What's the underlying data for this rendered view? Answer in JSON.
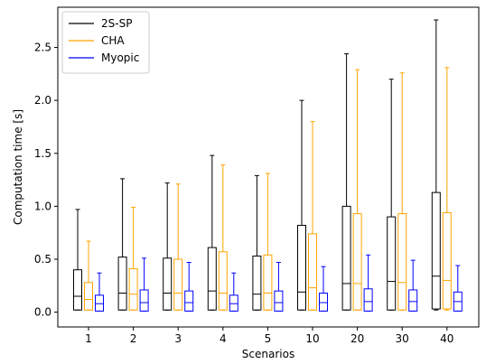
{
  "chart_data": {
    "type": "box",
    "xlabel": "Scenarios",
    "ylabel": "Computation time [s]",
    "categories": [
      "1",
      "2",
      "3",
      "4",
      "5",
      "10",
      "20",
      "30",
      "40"
    ],
    "ylim": [
      -0.14,
      2.88
    ],
    "yticks": [
      "0.0",
      "0.5",
      "1.0",
      "1.5",
      "2.0",
      "2.5"
    ],
    "grid": false,
    "legend": {
      "placement": "top-left"
    },
    "series": [
      {
        "name": "2S-SP",
        "color": "#000000",
        "boxes": [
          {
            "min": 0.02,
            "q1": 0.02,
            "median": 0.15,
            "q3": 0.4,
            "max": 0.97
          },
          {
            "min": 0.02,
            "q1": 0.02,
            "median": 0.18,
            "q3": 0.52,
            "max": 1.26
          },
          {
            "min": 0.02,
            "q1": 0.02,
            "median": 0.18,
            "q3": 0.51,
            "max": 1.22
          },
          {
            "min": 0.02,
            "q1": 0.02,
            "median": 0.2,
            "q3": 0.61,
            "max": 1.48
          },
          {
            "min": 0.02,
            "q1": 0.02,
            "median": 0.17,
            "q3": 0.53,
            "max": 1.29
          },
          {
            "min": 0.02,
            "q1": 0.02,
            "median": 0.19,
            "q3": 0.82,
            "max": 2.0
          },
          {
            "min": 0.02,
            "q1": 0.02,
            "median": 0.27,
            "q3": 1.0,
            "max": 2.44
          },
          {
            "min": 0.02,
            "q1": 0.02,
            "median": 0.29,
            "q3": 0.9,
            "max": 2.2
          },
          {
            "min": 0.02,
            "q1": 0.03,
            "median": 0.34,
            "q3": 1.13,
            "max": 2.76
          }
        ]
      },
      {
        "name": "CHA",
        "color": "#FFA500",
        "boxes": [
          {
            "min": 0.02,
            "q1": 0.02,
            "median": 0.12,
            "q3": 0.28,
            "max": 0.67
          },
          {
            "min": 0.02,
            "q1": 0.02,
            "median": 0.17,
            "q3": 0.41,
            "max": 0.99
          },
          {
            "min": 0.02,
            "q1": 0.02,
            "median": 0.18,
            "q3": 0.5,
            "max": 1.21
          },
          {
            "min": 0.02,
            "q1": 0.02,
            "median": 0.18,
            "q3": 0.57,
            "max": 1.39
          },
          {
            "min": 0.02,
            "q1": 0.02,
            "median": 0.18,
            "q3": 0.54,
            "max": 1.31
          },
          {
            "min": 0.02,
            "q1": 0.02,
            "median": 0.23,
            "q3": 0.74,
            "max": 1.8
          },
          {
            "min": 0.02,
            "q1": 0.02,
            "median": 0.27,
            "q3": 0.93,
            "max": 2.29
          },
          {
            "min": 0.02,
            "q1": 0.02,
            "median": 0.28,
            "q3": 0.93,
            "max": 2.26
          },
          {
            "min": 0.02,
            "q1": 0.03,
            "median": 0.3,
            "q3": 0.94,
            "max": 2.31
          }
        ]
      },
      {
        "name": "Myopic",
        "color": "#0000FF",
        "boxes": [
          {
            "min": 0.01,
            "q1": 0.01,
            "median": 0.08,
            "q3": 0.16,
            "max": 0.37
          },
          {
            "min": 0.01,
            "q1": 0.01,
            "median": 0.09,
            "q3": 0.21,
            "max": 0.51
          },
          {
            "min": 0.01,
            "q1": 0.01,
            "median": 0.09,
            "q3": 0.2,
            "max": 0.47
          },
          {
            "min": 0.01,
            "q1": 0.01,
            "median": 0.08,
            "q3": 0.16,
            "max": 0.37
          },
          {
            "min": 0.01,
            "q1": 0.01,
            "median": 0.09,
            "q3": 0.2,
            "max": 0.47
          },
          {
            "min": 0.01,
            "q1": 0.01,
            "median": 0.09,
            "q3": 0.18,
            "max": 0.43
          },
          {
            "min": 0.01,
            "q1": 0.01,
            "median": 0.1,
            "q3": 0.22,
            "max": 0.54
          },
          {
            "min": 0.01,
            "q1": 0.01,
            "median": 0.1,
            "q3": 0.21,
            "max": 0.49
          },
          {
            "min": 0.01,
            "q1": 0.01,
            "median": 0.1,
            "q3": 0.19,
            "max": 0.44
          }
        ]
      }
    ]
  }
}
